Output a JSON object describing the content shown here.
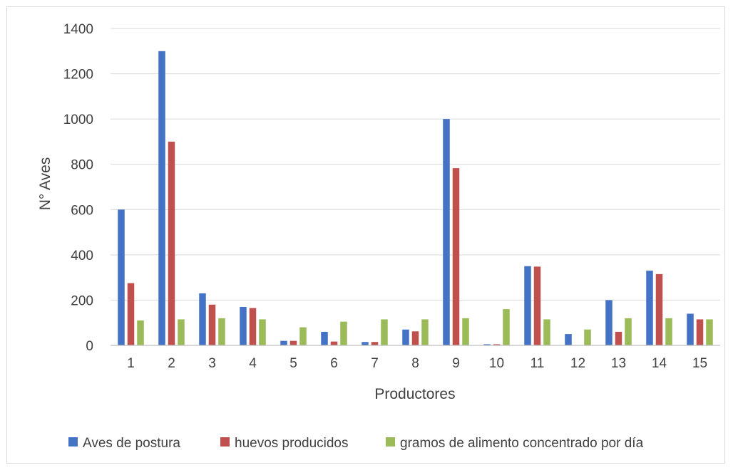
{
  "chart_data": {
    "type": "bar",
    "xlabel": "Productores",
    "ylabel": "N° Aves",
    "ylim": [
      0,
      1400
    ],
    "yticks": [
      0,
      200,
      400,
      600,
      800,
      1000,
      1200,
      1400
    ],
    "grid": "horizontal",
    "legend_position": "bottom",
    "categories": [
      "1",
      "2",
      "3",
      "4",
      "5",
      "6",
      "7",
      "8",
      "9",
      "10",
      "11",
      "12",
      "13",
      "14",
      "15"
    ],
    "series": [
      {
        "name": "Aves de postura",
        "color": "#4472c4",
        "values": [
          600,
          1300,
          230,
          170,
          20,
          60,
          15,
          70,
          1000,
          5,
          350,
          50,
          200,
          330,
          140
        ]
      },
      {
        "name": "huevos producidos",
        "color": "#c0504d",
        "values": [
          275,
          900,
          180,
          165,
          20,
          17,
          15,
          62,
          783,
          5,
          348,
          0,
          60,
          315,
          115
        ]
      },
      {
        "name": "gramos de alimento concentrado por día",
        "color": "#9bbb59",
        "values": [
          110,
          115,
          120,
          115,
          80,
          105,
          115,
          115,
          120,
          160,
          115,
          70,
          120,
          120,
          115
        ]
      }
    ]
  }
}
